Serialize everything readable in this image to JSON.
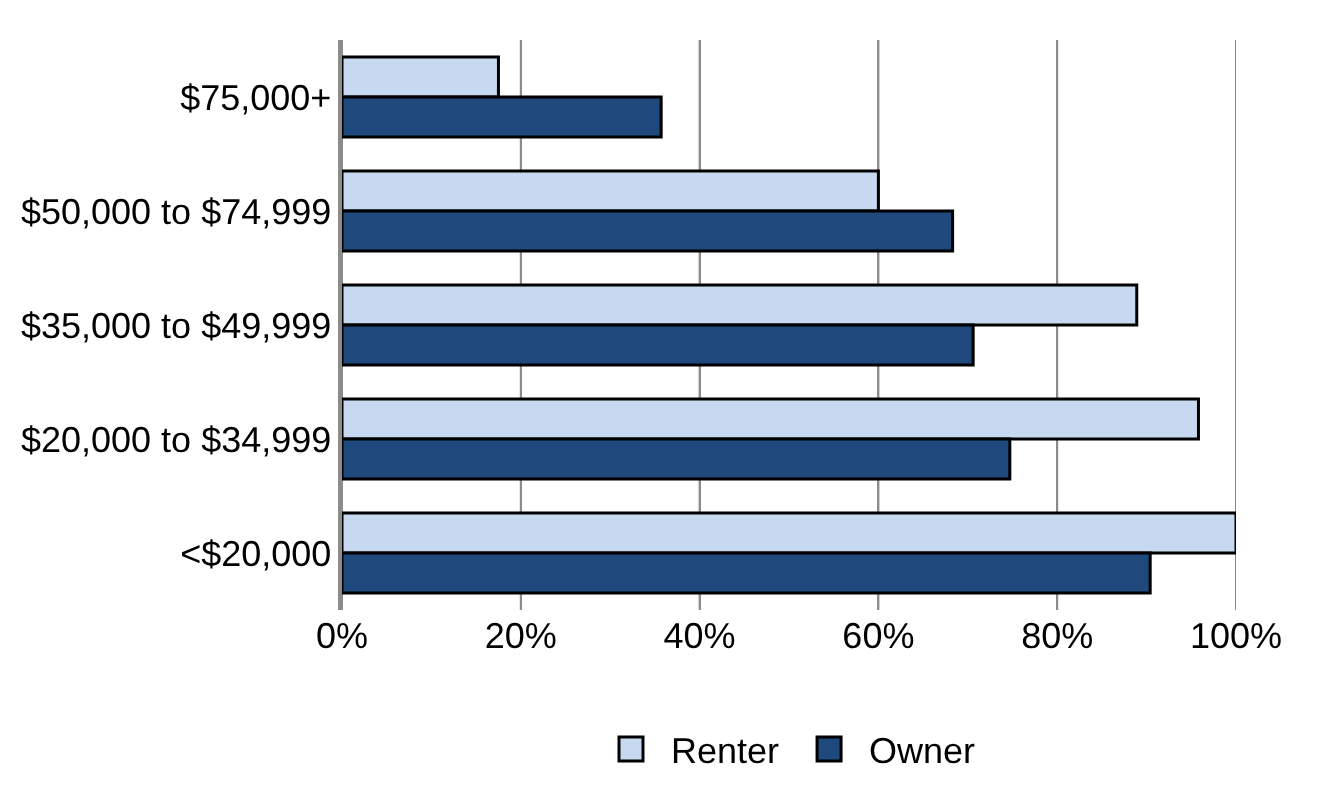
{
  "chart_data": {
    "type": "bar",
    "orientation": "horizontal",
    "categories": [
      "$75,000+",
      "$50,000 to $74,999",
      "$35,000 to $49,999",
      "$20,000 to $34,999",
      "<$20,000"
    ],
    "series": [
      {
        "name": "Renter",
        "color": "#c6d9f1",
        "values": [
          17.5,
          60,
          88.9,
          95.8,
          100
        ]
      },
      {
        "name": "Owner",
        "color": "#1f497d",
        "values": [
          35.7,
          68.3,
          70.6,
          74.7,
          90.4
        ]
      }
    ],
    "xlim": [
      0,
      100
    ],
    "xticks": [
      {
        "value": 0,
        "label": "0%"
      },
      {
        "value": 20,
        "label": "20%"
      },
      {
        "value": 40,
        "label": "40%"
      },
      {
        "value": 60,
        "label": "60%"
      },
      {
        "value": 80,
        "label": "80%"
      },
      {
        "value": 100,
        "label": "100%"
      }
    ],
    "grid": "x",
    "legend": "bottom"
  }
}
